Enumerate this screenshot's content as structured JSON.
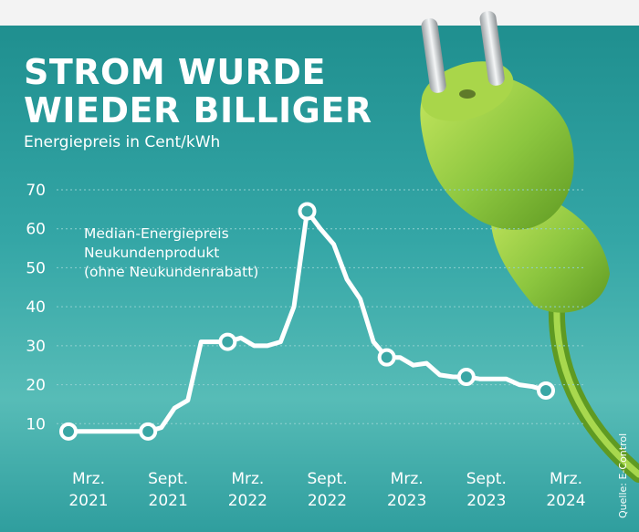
{
  "chart_data": {
    "type": "line",
    "title_lines": [
      "STROM WURDE",
      "WIEDER BILLIGER"
    ],
    "ylabel": "Energiepreis in Cent/kWh",
    "annotation": [
      "Median-Energiepreis",
      "Neukundenprodukt",
      "(ohne Neukundenrabatt)"
    ],
    "source": "Quelle: E-Control",
    "ylim": [
      0,
      70
    ],
    "yticks": [
      "10",
      "20",
      "30",
      "40",
      "50",
      "60",
      "70"
    ],
    "xticks": [
      {
        "month": "Mrz.",
        "year": "2021"
      },
      {
        "month": "Sept.",
        "year": "2021"
      },
      {
        "month": "Mrz.",
        "year": "2022"
      },
      {
        "month": "Sept.",
        "year": "2022"
      },
      {
        "month": "Mrz.",
        "year": "2023"
      },
      {
        "month": "Sept.",
        "year": "2023"
      },
      {
        "month": "Mrz.",
        "year": "2024"
      }
    ],
    "series": [
      {
        "x": [
          "2021-03",
          "2021-04",
          "2021-05",
          "2021-06",
          "2021-07",
          "2021-08",
          "2021-09",
          "2021-10",
          "2021-11",
          "2021-12",
          "2022-01",
          "2022-02",
          "2022-03",
          "2022-04",
          "2022-05",
          "2022-06",
          "2022-07",
          "2022-08",
          "2022-09",
          "2022-10",
          "2022-11",
          "2022-12",
          "2023-01",
          "2023-02",
          "2023-03",
          "2023-04",
          "2023-05",
          "2023-06",
          "2023-07",
          "2023-08",
          "2023-09",
          "2023-10",
          "2023-11",
          "2023-12",
          "2024-01",
          "2024-02",
          "2024-03"
        ],
        "values": [
          8,
          8,
          8,
          8,
          8,
          8,
          8,
          9,
          14,
          16,
          31,
          31,
          31,
          32,
          30,
          30,
          31,
          40,
          64.5,
          60,
          56,
          47,
          42,
          31,
          27,
          27,
          25,
          25.5,
          22.5,
          22,
          22,
          21.5,
          21.5,
          21.5,
          20,
          19.5,
          18.5
        ],
        "markers_at": [
          "2021-03",
          "2021-09",
          "2022-03",
          "2022-09",
          "2023-03",
          "2023-09",
          "2024-03"
        ]
      }
    ],
    "colors": {
      "line": "#ffffff",
      "gridline": "#8fd0cf",
      "plug": "#8cc63f",
      "background_top": "#1f8f8f",
      "background_bottom": "#57bcb7"
    }
  }
}
